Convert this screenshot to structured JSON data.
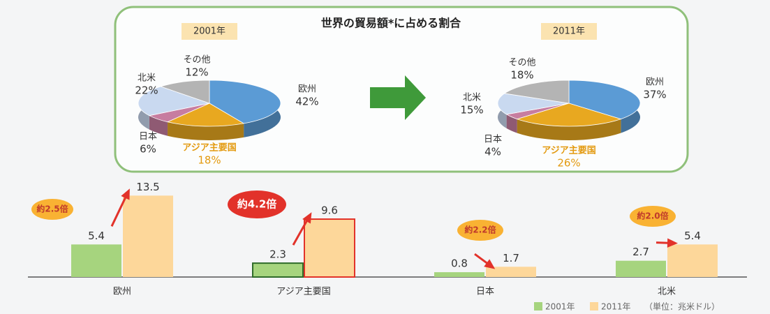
{
  "title": "世界の貿易額*に占める割合",
  "chart_data": [
    {
      "type": "pie",
      "title": "2001年",
      "categories": [
        "欧州",
        "アジア主要国",
        "日本",
        "北米",
        "その他"
      ],
      "values": [
        42,
        18,
        6,
        22,
        12
      ],
      "value_labels": [
        "42%",
        "18%",
        "6%",
        "22%",
        "12%"
      ],
      "colors": [
        "#5b9bd5",
        "#e8a820",
        "#c77da0",
        "#c9d9f0",
        "#b4b4b4"
      ]
    },
    {
      "type": "pie",
      "title": "2011年",
      "categories": [
        "欧州",
        "アジア主要国",
        "日本",
        "北米",
        "その他"
      ],
      "values": [
        37,
        26,
        4,
        15,
        18
      ],
      "value_labels": [
        "37%",
        "26%",
        "4%",
        "15%",
        "18%"
      ],
      "colors": [
        "#5b9bd5",
        "#e8a820",
        "#c77da0",
        "#c9d9f0",
        "#b4b4b4"
      ]
    },
    {
      "type": "bar",
      "categories": [
        "欧州",
        "アジア主要国",
        "日本",
        "北米"
      ],
      "series": [
        {
          "name": "2001年",
          "color": "#a6d47e",
          "values": [
            5.4,
            2.3,
            0.8,
            2.7
          ]
        },
        {
          "name": "2011年",
          "color": "#fdd79a",
          "values": [
            13.5,
            9.6,
            1.7,
            5.4
          ]
        }
      ],
      "annotations": [
        "約2.5倍",
        "約4.2倍",
        "約2.2倍",
        "約2.0倍"
      ],
      "unit": "（単位：兆米ドル）",
      "ylim": [
        0,
        14
      ]
    }
  ]
}
